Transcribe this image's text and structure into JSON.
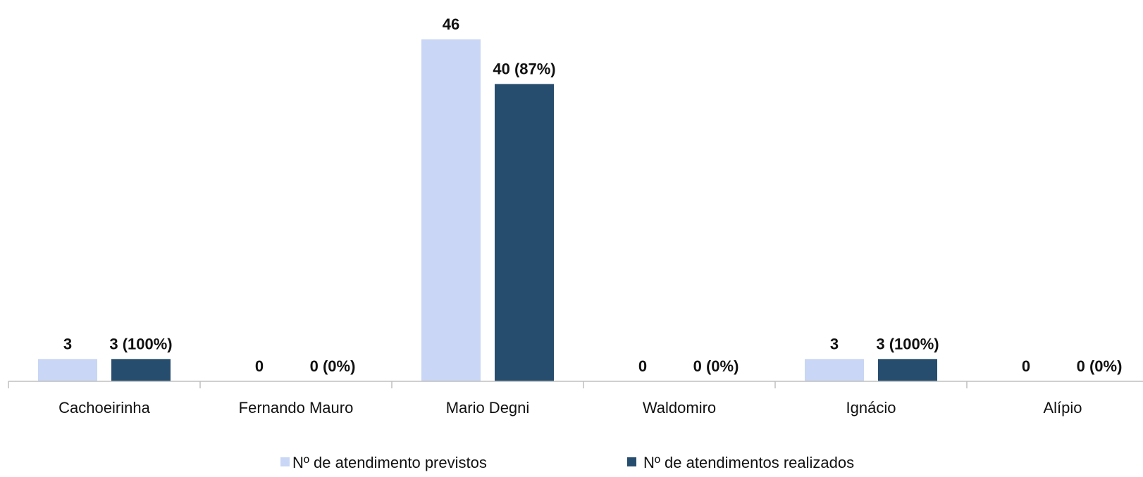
{
  "chart_data": {
    "type": "bar",
    "categories": [
      "Cachoeirinha",
      "Fernando Mauro",
      "Mario Degni",
      "Waldomiro",
      "Ignácio",
      "Alípio"
    ],
    "series": [
      {
        "name": "Nº de atendimento previstos",
        "values": [
          3,
          0,
          46,
          0,
          3,
          0
        ],
        "labels": [
          "3",
          "0",
          "46",
          "0",
          "3",
          "0"
        ],
        "color": "#c9d6f5"
      },
      {
        "name": "Nº de atendimentos realizados",
        "values": [
          3,
          0,
          40,
          0,
          3,
          0
        ],
        "labels": [
          "3 (100%)",
          "0 (0%)",
          "40 (87%)",
          "0 (0%)",
          "3 (100%)",
          "0 (0%)"
        ],
        "color": "#264d6e"
      }
    ],
    "ylim": [
      0,
      46
    ],
    "grid": false,
    "legend_position": "bottom",
    "axis_color": "#bfbfbf"
  }
}
